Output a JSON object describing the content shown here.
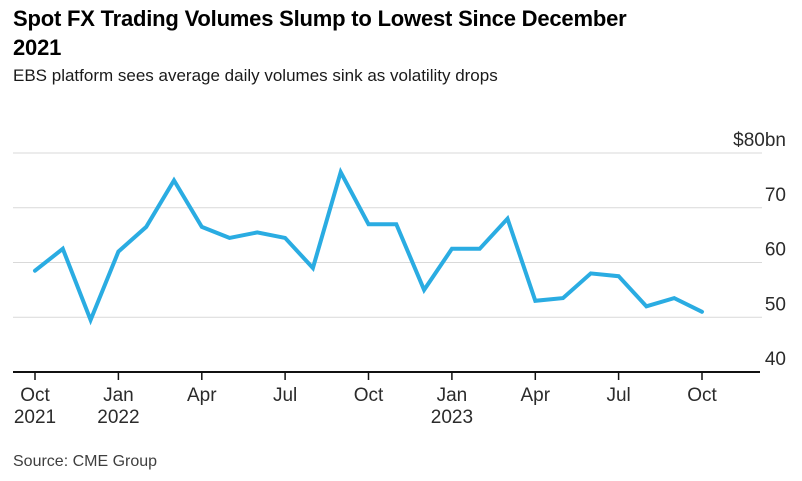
{
  "header": {
    "title_lines": [
      "Spot FX Trading Volumes Slump to Lowest Since December",
      "2021"
    ],
    "subtitle": "EBS platform sees average daily volumes sink as volatility drops"
  },
  "footer": {
    "source": "Source: CME Group"
  },
  "colors": {
    "line": "#2aace2",
    "grid": "#d9d9d9",
    "axis": "#111111",
    "axis_text": "#2b2b2b"
  },
  "chart_data": {
    "type": "line",
    "title": "Spot FX Trading Volumes Slump to Lowest Since December 2021",
    "subtitle": "EBS platform sees average daily volumes sink as volatility drops",
    "source": "Source: CME Group",
    "unit": "$bn (average daily volume)",
    "grid": true,
    "legend_position": "none",
    "ylim": [
      40,
      80
    ],
    "line_color": "#2aace2",
    "x": [
      "Oct 2021",
      "Nov 2021",
      "Dec 2021",
      "Jan 2022",
      "Feb 2022",
      "Mar 2022",
      "Apr 2022",
      "May 2022",
      "Jun 2022",
      "Jul 2022",
      "Aug 2022",
      "Sep 2022",
      "Oct 2022",
      "Nov 2022",
      "Dec 2022",
      "Jan 2023",
      "Feb 2023",
      "Mar 2023",
      "Apr 2023",
      "May 2023",
      "Jun 2023",
      "Jul 2023",
      "Aug 2023",
      "Sep 2023",
      "Oct 2023"
    ],
    "values": [
      58.5,
      62.5,
      49.5,
      62,
      66.5,
      75,
      66.5,
      64.5,
      65.5,
      64.5,
      59,
      76.5,
      67,
      67,
      55,
      62.5,
      62.5,
      68,
      53,
      53.5,
      58,
      57.5,
      52,
      53.5,
      51
    ],
    "y_ticks": [
      {
        "label": "$80bn",
        "value": 80
      },
      {
        "label": "70",
        "value": 70
      },
      {
        "label": "60",
        "value": 60
      },
      {
        "label": "50",
        "value": 50
      },
      {
        "label": "40",
        "value": 40
      }
    ],
    "x_ticks": [
      {
        "index": 0,
        "label": "Oct",
        "year": "2021"
      },
      {
        "index": 3,
        "label": "Jan",
        "year": "2022"
      },
      {
        "index": 6,
        "label": "Apr"
      },
      {
        "index": 9,
        "label": "Jul"
      },
      {
        "index": 12,
        "label": "Oct"
      },
      {
        "index": 15,
        "label": "Jan",
        "year": "2023"
      },
      {
        "index": 18,
        "label": "Apr"
      },
      {
        "index": 21,
        "label": "Jul"
      },
      {
        "index": 24,
        "label": "Oct"
      }
    ]
  }
}
